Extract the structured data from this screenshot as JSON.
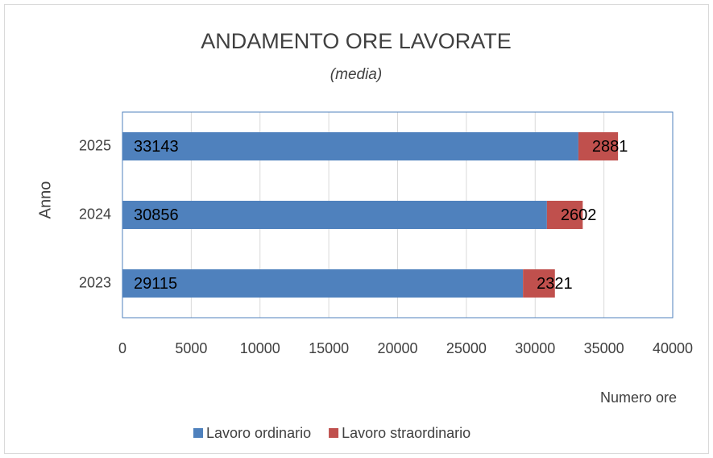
{
  "chart_data": {
    "type": "bar",
    "orientation": "horizontal",
    "stacked": true,
    "title": "ANDAMENTO ORE LAVORATE",
    "subtitle": "(media)",
    "x_label": "Numero ore",
    "y_label": "Anno",
    "categories": [
      "2023",
      "2024",
      "2025"
    ],
    "series": [
      {
        "name": "Lavoro ordinario",
        "color": "#4f81bd",
        "values": [
          29115,
          30856,
          33143
        ]
      },
      {
        "name": "Lavoro straordinario",
        "color": "#c0504d",
        "values": [
          2321,
          2602,
          2881
        ]
      }
    ],
    "xlim": [
      0,
      40000
    ],
    "xticks": [
      0,
      5000,
      10000,
      15000,
      20000,
      25000,
      30000,
      35000,
      40000
    ],
    "grid": true,
    "legend": "bottom"
  }
}
